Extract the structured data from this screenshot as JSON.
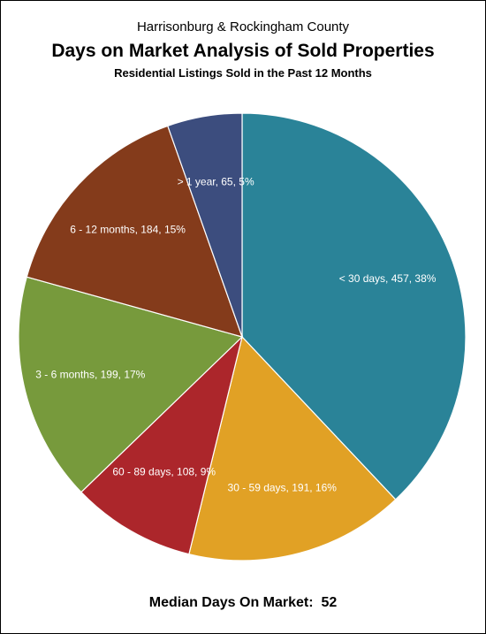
{
  "chart_data": {
    "type": "pie",
    "supertitle": "Harrisonburg & Rockingham County",
    "title": "Days on Market Analysis of Sold Properties",
    "subtitle": "Residential Listings Sold in the Past 12 Months",
    "slices": [
      {
        "label": "< 30 days",
        "count": 457,
        "percent": "38%",
        "color": "#2a8398",
        "text": "< 30 days, 457, 38%"
      },
      {
        "label": "30 - 59 days",
        "count": 191,
        "percent": "16%",
        "color": "#e1a125",
        "text": "30 - 59 days, 191, 16%"
      },
      {
        "label": "60 - 89 days",
        "count": 108,
        "percent": "9%",
        "color": "#ac262b",
        "text": "60 - 89 days, 108, 9%"
      },
      {
        "label": "3 - 6 months",
        "count": 199,
        "percent": "17%",
        "color": "#779a3c",
        "text": "3 - 6 months, 199, 17%"
      },
      {
        "label": "6 - 12 months",
        "count": 184,
        "percent": "15%",
        "color": "#843b1b",
        "text": "6 - 12 months, 184, 15%"
      },
      {
        "label": "> 1 year",
        "count": 65,
        "percent": "5%",
        "color": "#3c4d7e",
        "text": "> 1 year, 65, 5%"
      }
    ],
    "label_position": "inside"
  },
  "footer": {
    "label": "Median Days On Market:",
    "value": "52"
  },
  "colors": {
    "background": "#ffffff",
    "frame": "#000000",
    "slice_border": "#ffffff"
  }
}
